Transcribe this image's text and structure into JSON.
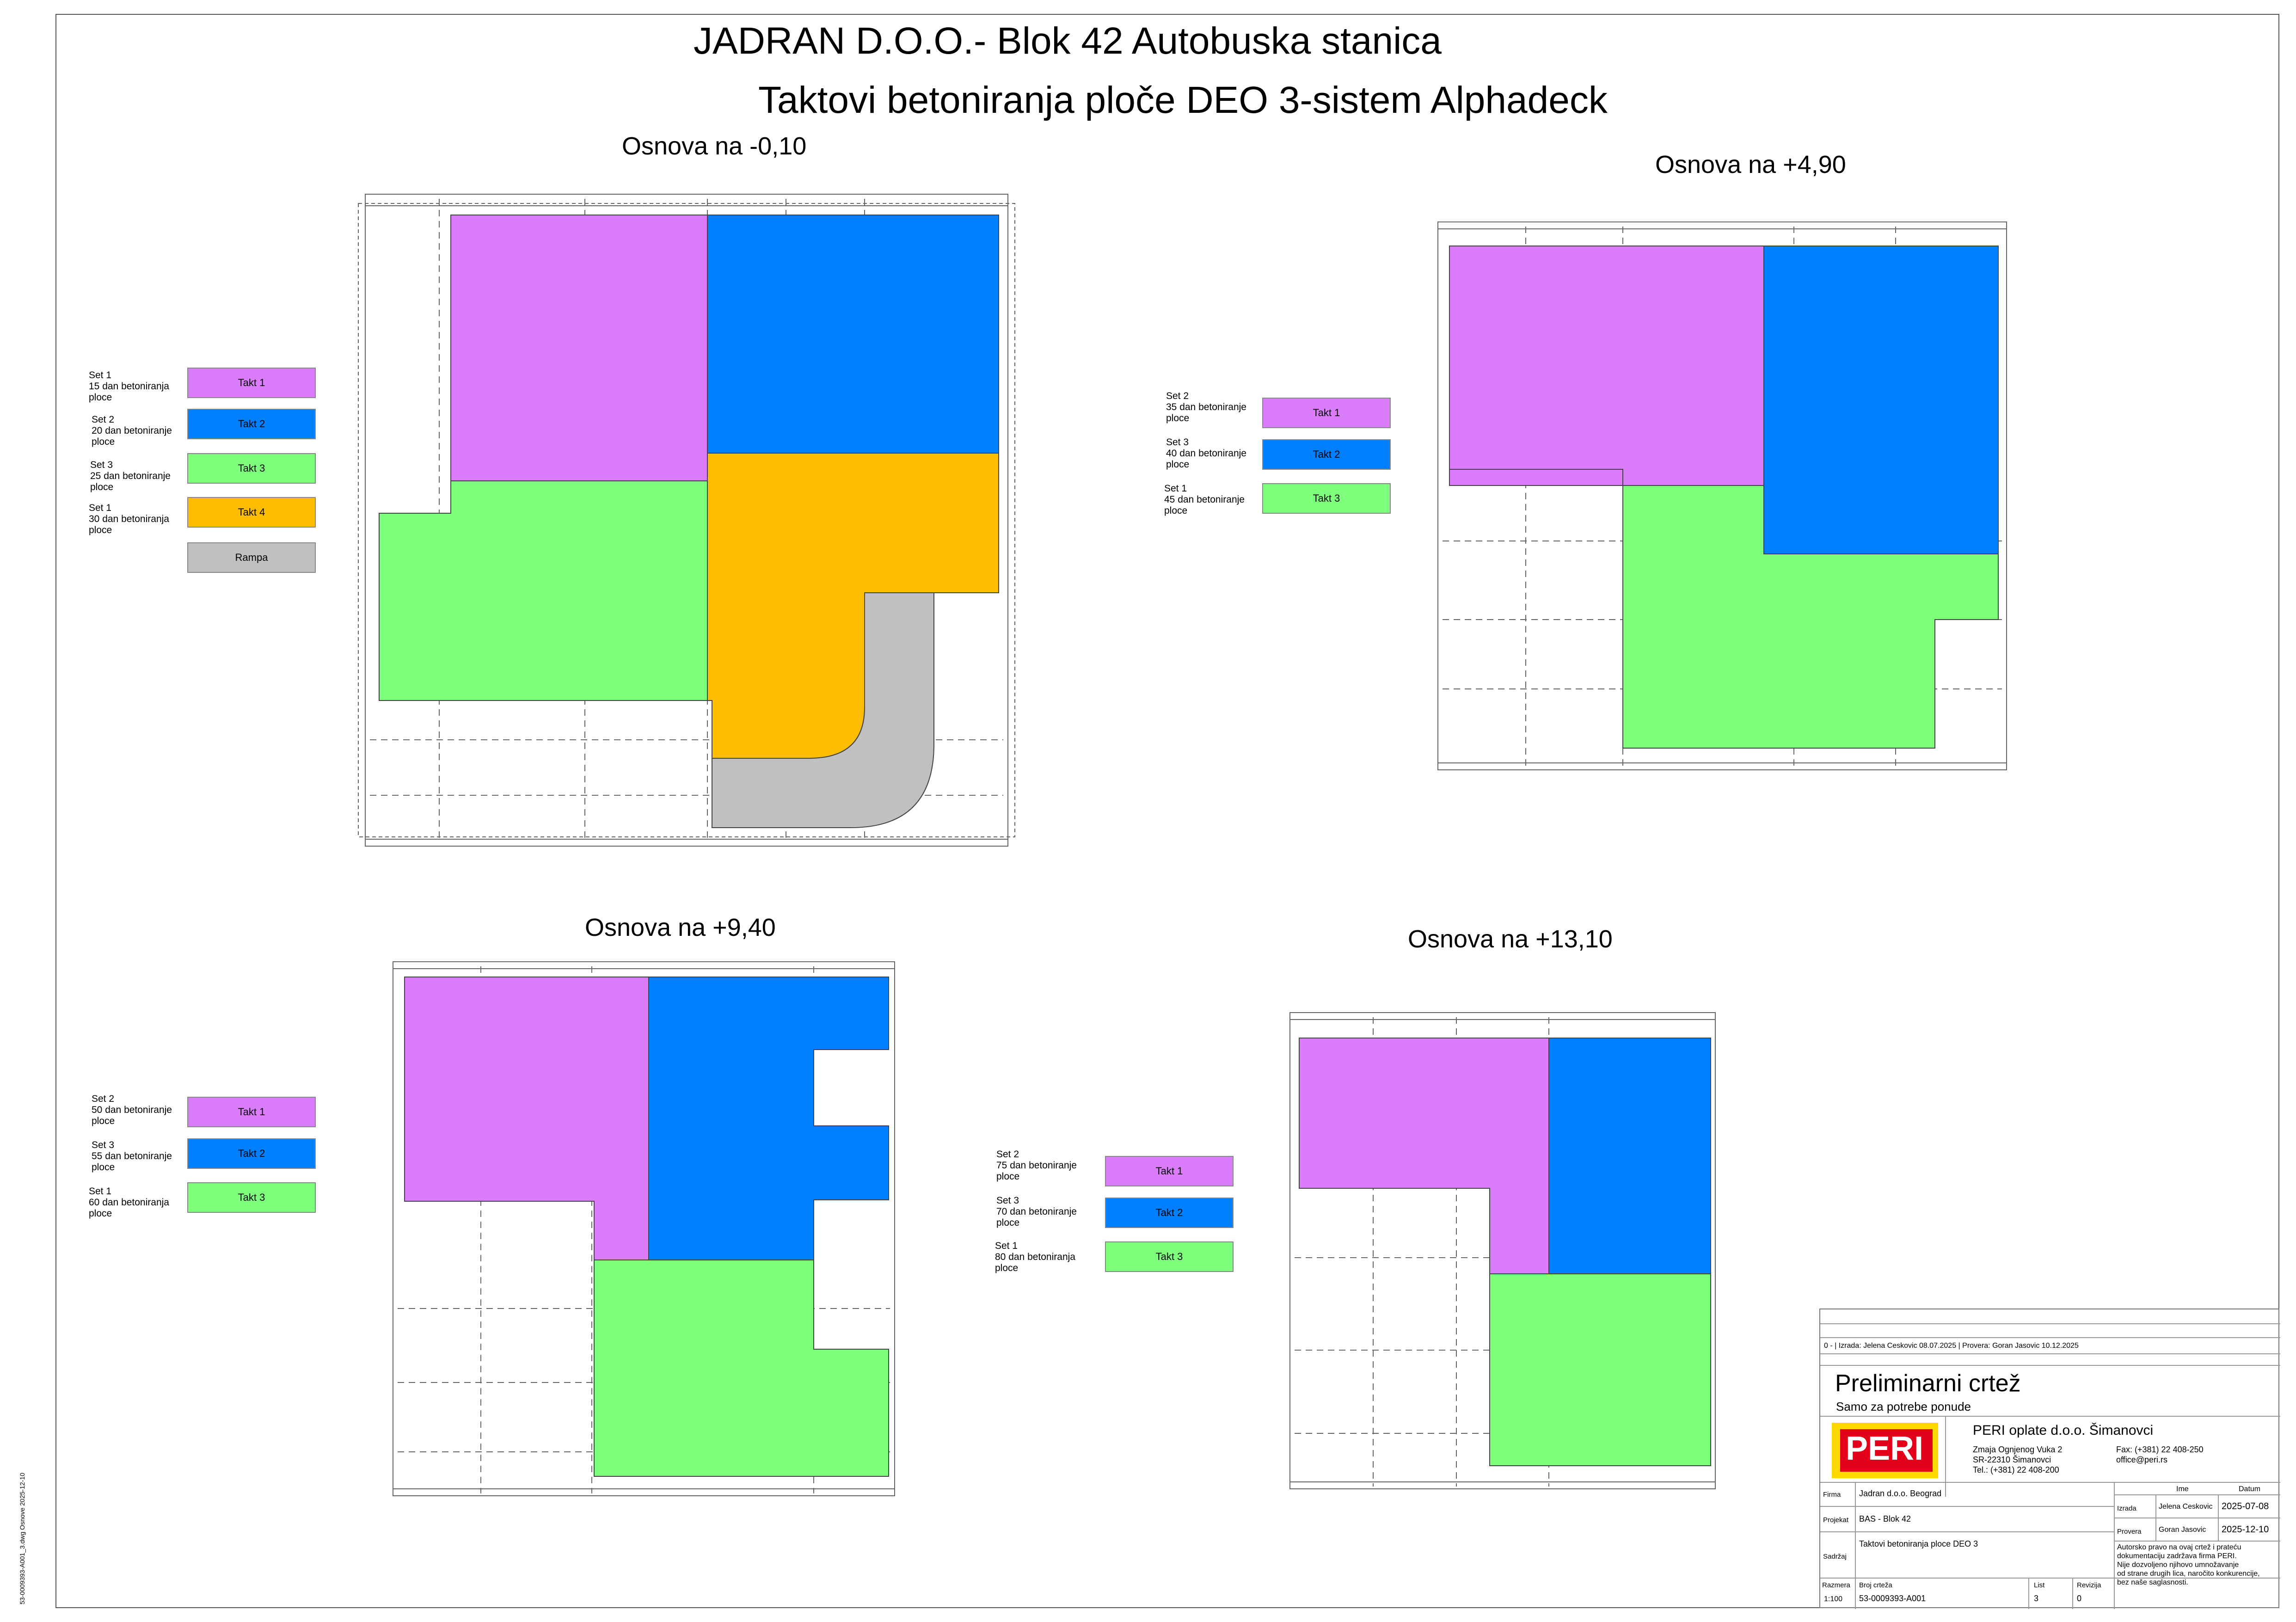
{
  "header": {
    "title_line1": "JADRAN D.O.O.- Blok 42 Autobuska stanica",
    "title_line2": "Taktovi betoniranja ploče DEO 3-sistem Alphadeck"
  },
  "colors": {
    "takt1": "#DB7CFB",
    "takt2": "#0080FE",
    "takt3": "#7EFF7C",
    "takt4": "#FFBD00",
    "rampa": "#C0C0C0"
  },
  "plans": [
    {
      "title": "Osnova na -0,10",
      "legend": [
        {
          "set": "Set 1\n15 dan betoniranja\nploce",
          "label": "Takt 1",
          "color": "takt1"
        },
        {
          "set": "Set 2\n20 dan betoniranje\nploce",
          "label": "Takt 2",
          "color": "takt2"
        },
        {
          "set": "Set 3\n25 dan betoniranje\nploce",
          "label": "Takt 3",
          "color": "takt3"
        },
        {
          "set": "Set 1\n30 dan betoniranja\nploce",
          "label": "Takt 4",
          "color": "takt4"
        },
        {
          "set": "",
          "label": "Rampa",
          "color": "rampa"
        }
      ]
    },
    {
      "title": "Osnova na +4,90",
      "legend": [
        {
          "set": "Set 2\n35 dan betoniranje\nploce",
          "label": "Takt 1",
          "color": "takt1"
        },
        {
          "set": "Set 3\n40 dan betoniranje\nploce",
          "label": "Takt 2",
          "color": "takt2"
        },
        {
          "set": "Set 1\n45 dan betoniranje\nploce",
          "label": "Takt 3",
          "color": "takt3"
        }
      ]
    },
    {
      "title": "Osnova na +9,40",
      "legend": [
        {
          "set": "Set 2\n50 dan betoniranje\nploce",
          "label": "Takt 1",
          "color": "takt1"
        },
        {
          "set": "Set 3\n55 dan betoniranje\nploce",
          "label": "Takt 2",
          "color": "takt2"
        },
        {
          "set": "Set 1\n60 dan betoniranja\nploce",
          "label": "Takt 3",
          "color": "takt3"
        }
      ]
    },
    {
      "title": "Osnova na +13,10",
      "legend": [
        {
          "set": "Set 2\n75 dan betoniranje\nploce",
          "label": "Takt 1",
          "color": "takt1"
        },
        {
          "set": "Set 3\n70 dan betoniranje\nploce",
          "label": "Takt 2",
          "color": "takt2"
        },
        {
          "set": "Set 1\n80 dan betoniranja\nploce",
          "label": "Takt 3",
          "color": "takt3"
        }
      ]
    }
  ],
  "title_block": {
    "revision": "0 - | Izrada: Jelena Ceskovic 08.07.2025 | Provera: Goran Jasovic 10.12.2025",
    "status": "Preliminarni crtež",
    "status_sub": "Samo za potrebe ponude",
    "logo_text": "PERI",
    "company": "PERI oplate d.o.o. Šimanovci",
    "address1": "Zmaja Ognjenog Vuka 2",
    "address2": "SR-22310 Šimanovci",
    "tel": "Tel.: (+381) 22 408-200",
    "fax": "Fax: (+381) 22 408-250",
    "email": "office@peri.rs",
    "firma_label": "Firma",
    "firma": "Jadran d.o.o. Beograd",
    "projekat_label": "Projekat",
    "projekat": "BAS - Blok 42",
    "sadrzaj_label": "Sadržaj",
    "sadrzaj": "Taktovi betoniranja ploce DEO 3",
    "ime_label": "Ime",
    "datum_label": "Datum",
    "izrada_label": "Izrada",
    "izrada_ime": "Jelena Ceskovic",
    "izrada_datum": "2025-07-08",
    "provera_label": "Provera",
    "provera_ime": "Goran Jasovic",
    "provera_datum": "2025-12-10",
    "copyright": "Autorsko pravo na ovaj crtež i prateću\ndokumentaciju zadržava firma PERI.\nNije dozvoljeno njihovo umnožavanje\nod strane drugih lica, naročito konkurencije,\nbez naše saglasnosti.",
    "razmera_label": "Razmera",
    "razmera": "1:100",
    "broj_label": "Broj crteža",
    "broj": "53-0009393-A001",
    "list_label": "List",
    "list": "3",
    "revizija_label": "Revizija",
    "revizija": "0"
  },
  "margin_note": "53-0009393-A001_3.dwg Osnove 2025-12-10"
}
